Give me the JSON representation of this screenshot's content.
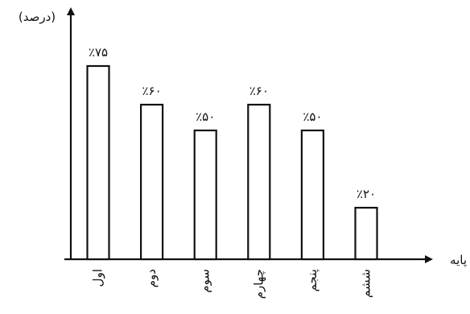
{
  "chart_data": {
    "type": "bar",
    "title": "",
    "ylabel": "(درصد)",
    "xlabel": "پایه",
    "categories": [
      "اول",
      "دوم",
      "سوم",
      "چهارم",
      "پنجم",
      "ششم"
    ],
    "values": [
      75,
      60,
      50,
      60,
      50,
      20
    ],
    "data_labels": [
      "٪۷۵",
      "٪۶۰",
      "٪۵۰",
      "٪۶۰",
      "٪۵۰",
      "٪۲۰"
    ],
    "ylim": [
      0,
      100
    ],
    "grid": false,
    "legend": "none"
  }
}
